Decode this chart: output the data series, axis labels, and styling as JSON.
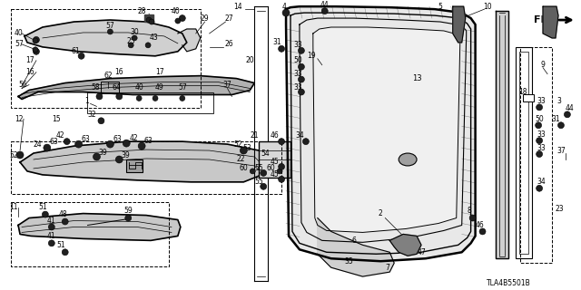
{
  "bg_color": "#ffffff",
  "diagram_code": "TLA4B5501B",
  "fig_w": 6.4,
  "fig_h": 3.2,
  "dpi": 100
}
